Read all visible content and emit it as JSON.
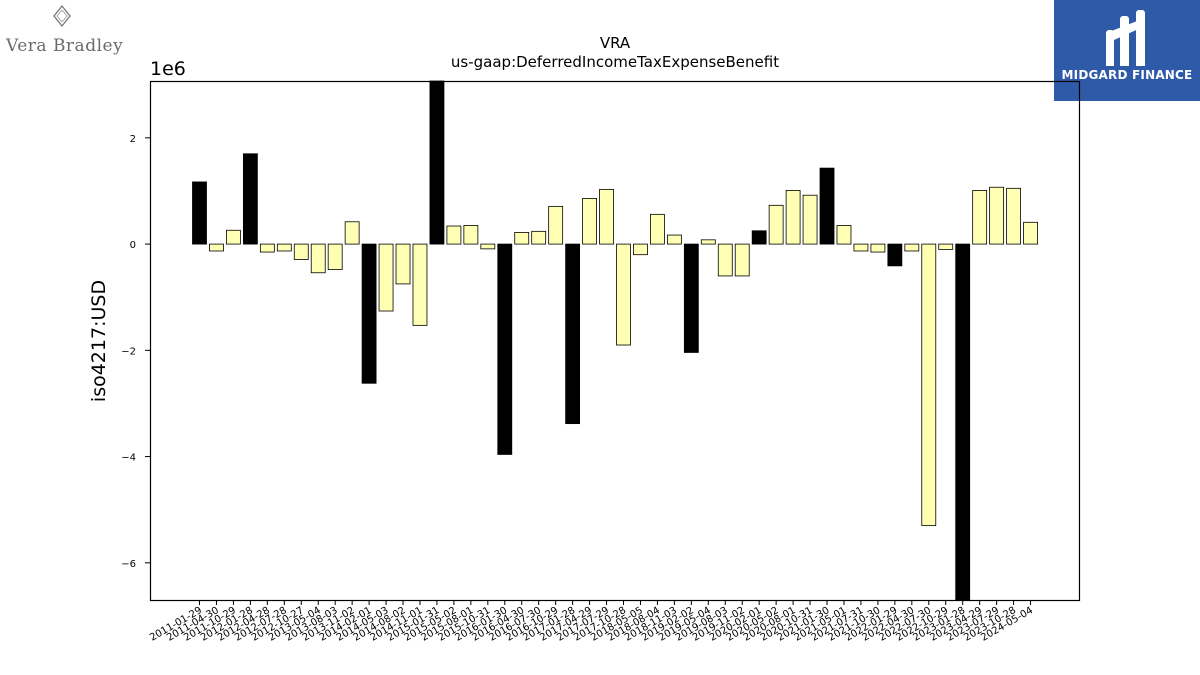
{
  "logos": {
    "left": {
      "text": "Vera Bradley",
      "icon": "diamond-vb-icon"
    },
    "right": {
      "text": "MIDGARD FINANCE",
      "icon": "midgard-m-icon",
      "color": "#2f5aa8"
    }
  },
  "chart_data": {
    "type": "bar",
    "title": "VRA",
    "subtitle": "us-gaap:DeferredIncomeTaxExpenseBenefit",
    "xlabel": "",
    "ylabel": "iso4217:USD",
    "scale_label": "1e6",
    "ylim": [
      -6.7,
      3.07
    ],
    "yticks": [
      2,
      0,
      -2,
      -4,
      -6
    ],
    "ytick_labels": [
      "2",
      "0",
      "−2",
      "−4",
      "−6"
    ],
    "grid": false,
    "colors": {
      "quarter": "#ffffb3",
      "annual": "#000000",
      "edge": "#000000"
    },
    "categories": [
      "2011-01-29",
      "2011-04-30",
      "2011-10-29",
      "2012-01-28",
      "2012-04-28",
      "2012-07-28",
      "2012-10-27",
      "2013-05-04",
      "2013-08-03",
      "2013-11-02",
      "2014-02-01",
      "2014-05-03",
      "2014-08-02",
      "2014-11-01",
      "2015-01-31",
      "2015-05-02",
      "2015-08-01",
      "2015-10-31",
      "2016-01-30",
      "2016-04-30",
      "2016-07-30",
      "2016-10-29",
      "2017-01-28",
      "2017-04-29",
      "2017-07-29",
      "2017-10-28",
      "2018-05-05",
      "2018-08-04",
      "2018-11-03",
      "2019-02-02",
      "2019-05-04",
      "2019-08-03",
      "2019-11-02",
      "2020-02-01",
      "2020-05-02",
      "2020-08-01",
      "2020-10-31",
      "2021-01-30",
      "2021-05-01",
      "2021-07-31",
      "2021-10-30",
      "2022-01-29",
      "2022-04-30",
      "2022-07-30",
      "2022-10-29",
      "2023-01-28",
      "2023-04-29",
      "2023-07-29",
      "2023-10-28",
      "2024-05-04"
    ],
    "values": [
      1.17,
      -0.13,
      0.26,
      1.7,
      -0.15,
      -0.13,
      -0.29,
      -0.54,
      -0.48,
      0.42,
      -2.62,
      -1.26,
      -0.75,
      -1.53,
      3.07,
      0.34,
      0.35,
      -0.09,
      -3.96,
      0.22,
      0.24,
      0.71,
      -3.38,
      0.86,
      1.03,
      -1.9,
      -0.2,
      0.56,
      0.17,
      -2.04,
      0.08,
      -0.6,
      -0.6,
      0.25,
      0.73,
      1.01,
      0.92,
      1.43,
      0.35,
      -0.13,
      -0.15,
      -0.41,
      -0.13,
      -5.3,
      -0.1,
      -6.7,
      1.01,
      1.07,
      1.05,
      0.41
    ],
    "annual": [
      true,
      false,
      false,
      true,
      false,
      false,
      false,
      false,
      false,
      false,
      true,
      false,
      false,
      false,
      true,
      false,
      false,
      false,
      true,
      false,
      false,
      false,
      true,
      false,
      false,
      false,
      false,
      false,
      false,
      true,
      false,
      false,
      false,
      true,
      false,
      false,
      false,
      true,
      false,
      false,
      false,
      true,
      false,
      false,
      false,
      true,
      false,
      false,
      false,
      false
    ]
  }
}
